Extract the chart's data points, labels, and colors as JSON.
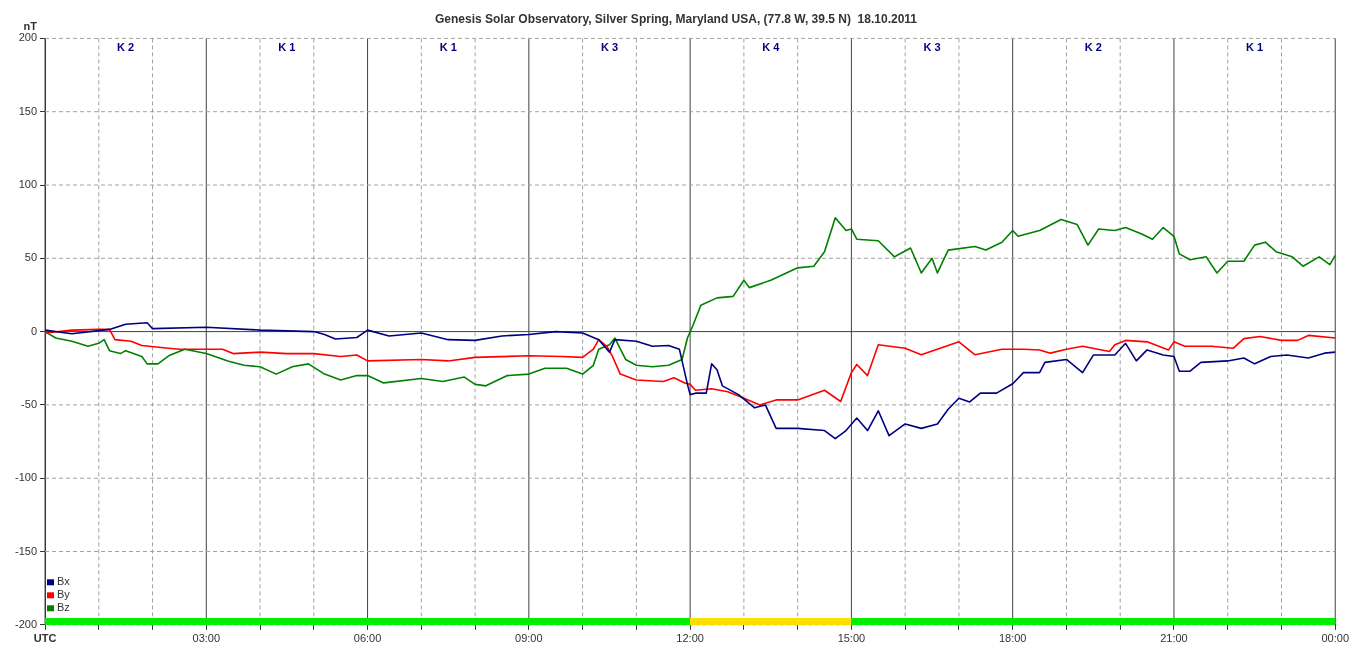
{
  "chart_data": {
    "type": "line",
    "title": "Genesis Solar Observatory, Silver Spring, Maryland USA, (77.8 W, 39.5 N)  18.10.2011",
    "ylabel": "nT",
    "xlim": [
      0,
      24
    ],
    "xticks": [
      {
        "value": 0,
        "label": "UTC"
      },
      {
        "value": 1,
        "label": null
      },
      {
        "value": 2,
        "label": null
      },
      {
        "value": 3,
        "label": "03:00"
      },
      {
        "value": 4,
        "label": null
      },
      {
        "value": 5,
        "label": null
      },
      {
        "value": 6,
        "label": "06:00"
      },
      {
        "value": 7,
        "label": null
      },
      {
        "value": 8,
        "label": null
      },
      {
        "value": 9,
        "label": "09:00"
      },
      {
        "value": 10,
        "label": null
      },
      {
        "value": 11,
        "label": null
      },
      {
        "value": 12,
        "label": "12:00"
      },
      {
        "value": 13,
        "label": null
      },
      {
        "value": 14,
        "label": null
      },
      {
        "value": 15,
        "label": "15:00"
      },
      {
        "value": 16,
        "label": null
      },
      {
        "value": 17,
        "label": null
      },
      {
        "value": 18,
        "label": "18:00"
      },
      {
        "value": 19,
        "label": null
      },
      {
        "value": 20,
        "label": null
      },
      {
        "value": 21,
        "label": "21:00"
      },
      {
        "value": 22,
        "label": null
      },
      {
        "value": 23,
        "label": null
      },
      {
        "value": 24,
        "label": "00:00"
      }
    ],
    "ylim": [
      -200,
      200
    ],
    "yticks": [
      -200,
      -150,
      -100,
      -50,
      0,
      50,
      100,
      150,
      200
    ],
    "grid": true,
    "legend": "bottom left",
    "marker": "none",
    "annotations": [
      "K 2",
      "K 1",
      "K 1",
      "K 3",
      "K 4",
      "K 3",
      "K 2",
      "K 1"
    ],
    "series": [
      {
        "name": "Bx",
        "color": "#000080",
        "x": [
          0,
          0.5,
          1.2,
          1.5,
          1.9,
          2,
          3,
          4,
          5,
          5.2,
          5.4,
          5.8,
          6,
          6.4,
          7,
          7.5,
          8,
          8.5,
          9,
          9.5,
          10,
          10.3,
          10.5,
          10.6,
          11,
          11.3,
          11.6,
          11.8,
          11.95,
          12,
          12.1,
          12.3,
          12.4,
          12.5,
          12.6,
          12.9,
          13.2,
          13.4,
          13.6,
          14,
          14.5,
          14.7,
          14.9,
          15.1,
          15.3,
          15.5,
          15.7,
          16,
          16.3,
          16.6,
          16.8,
          17,
          17.2,
          17.4,
          17.7,
          18,
          18.2,
          18.5,
          18.6,
          19,
          19.3,
          19.5,
          19.9,
          20.1,
          20.3,
          20.5,
          20.8,
          21,
          21.1,
          21.3,
          21.5,
          22,
          22.3,
          22.5,
          22.8,
          23.1,
          23.5,
          23.8,
          24
        ],
        "values": [
          1,
          -1.5,
          1.5,
          5,
          6,
          2,
          3,
          1,
          0,
          -2,
          -5,
          -4,
          1,
          -3,
          -1,
          -5.5,
          -6,
          -3,
          -2,
          0,
          -1,
          -5.5,
          -14,
          -5.5,
          -6.6,
          -10,
          -9.5,
          -12,
          -36,
          -43,
          -42,
          -42,
          -22,
          -26,
          -37,
          -43,
          -52,
          -50,
          -66,
          -66,
          -67.5,
          -73,
          -67.5,
          -59,
          -67.5,
          -54,
          -71,
          -63,
          -66,
          -63,
          -53,
          -45.5,
          -48,
          -42,
          -42,
          -35.6,
          -28,
          -28,
          -21,
          -19,
          -28,
          -16,
          -16,
          -8,
          -20,
          -12.5,
          -16,
          -17,
          -27,
          -27,
          -21,
          -20,
          -18,
          -22,
          -17,
          -16,
          -18,
          -14.7,
          -14
        ]
      },
      {
        "name": "By",
        "color": "#ff0000",
        "x": [
          0,
          0.5,
          1,
          1.2,
          1.3,
          1.6,
          1.8,
          2.2,
          2.5,
          3,
          3.3,
          3.5,
          4,
          4.5,
          5,
          5.5,
          5.8,
          6,
          7,
          7.5,
          8,
          9,
          9.6,
          10,
          10.2,
          10.3,
          10.45,
          10.55,
          10.7,
          11,
          11.5,
          11.7,
          11.9,
          12,
          12.1,
          12.4,
          12.7,
          12.9,
          13.3,
          13.6,
          14,
          14.5,
          14.8,
          15,
          15.1,
          15.3,
          15.5,
          16,
          16.3,
          17,
          17.3,
          17.8,
          18.2,
          18.5,
          18.7,
          19,
          19.3,
          19.8,
          19.9,
          20.1,
          20.5,
          20.9,
          21,
          21.2,
          21.7,
          22.1,
          22.3,
          22.6,
          23,
          23.3,
          23.5,
          24
        ],
        "values": [
          -1,
          1,
          1.5,
          1.5,
          -5.5,
          -6.6,
          -9.5,
          -11,
          -12,
          -12,
          -12,
          -15,
          -14,
          -15,
          -15,
          -17,
          -16,
          -20,
          -19,
          -20,
          -17.6,
          -16.5,
          -17,
          -17.6,
          -12,
          -5.5,
          -10,
          -16.5,
          -29,
          -33,
          -34,
          -31.5,
          -35,
          -36,
          -40,
          -39,
          -41,
          -44,
          -50,
          -46.6,
          -46.6,
          -40,
          -47.7,
          -28,
          -22.4,
          -30,
          -9,
          -11.4,
          -15.8,
          -7,
          -15.8,
          -12,
          -12,
          -12.5,
          -14.7,
          -12,
          -10,
          -13.6,
          -9,
          -6,
          -7,
          -12.5,
          -7,
          -10,
          -10,
          -11.4,
          -4.8,
          -3.3,
          -6,
          -6,
          -2.6,
          -4.4
        ]
      },
      {
        "name": "Bz",
        "color": "#008000",
        "x": [
          0,
          0.2,
          0.5,
          0.8,
          1,
          1.1,
          1.2,
          1.4,
          1.5,
          1.8,
          1.9,
          2.1,
          2.3,
          2.6,
          3,
          3.4,
          3.7,
          4,
          4.3,
          4.6,
          4.9,
          5.2,
          5.5,
          5.8,
          6,
          6.3,
          7,
          7.4,
          7.8,
          8,
          8.2,
          8.6,
          9,
          9.3,
          9.7,
          10,
          10.2,
          10.3,
          10.5,
          10.6,
          10.8,
          11,
          11.3,
          11.6,
          11.85,
          11.95,
          12.05,
          12.2,
          12.5,
          12.8,
          13,
          13.1,
          13.5,
          14,
          14.3,
          14.5,
          14.7,
          14.9,
          15,
          15.1,
          15.5,
          15.8,
          16.1,
          16.3,
          16.5,
          16.6,
          16.8,
          17.3,
          17.5,
          17.8,
          18,
          18.1,
          18.5,
          18.9,
          19.2,
          19.4,
          19.6,
          19.9,
          20.1,
          20.4,
          20.6,
          20.8,
          21,
          21.1,
          21.3,
          21.6,
          21.8,
          22,
          22.3,
          22.5,
          22.7,
          22.9,
          23.2,
          23.4,
          23.7,
          23.9,
          24
        ],
        "values": [
          0,
          -4.4,
          -6.6,
          -10,
          -8,
          -5.5,
          -13,
          -15,
          -13,
          -17,
          -22,
          -22,
          -16.5,
          -12,
          -15,
          -20,
          -23,
          -24,
          -29,
          -24,
          -22,
          -29,
          -33,
          -30,
          -30,
          -35,
          -32,
          -34,
          -31,
          -36,
          -37,
          -30,
          -29,
          -25,
          -25,
          -29,
          -23,
          -12,
          -9,
          -4.4,
          -19,
          -23,
          -24,
          -23,
          -19,
          -4.4,
          4,
          18,
          23,
          24,
          35,
          30,
          35,
          43.5,
          44.6,
          54.5,
          77.6,
          69,
          70,
          63,
          62,
          51,
          57,
          40,
          50,
          40,
          55.6,
          58,
          55.6,
          61,
          69,
          65,
          69,
          76.5,
          73,
          59,
          70,
          69,
          71,
          66.6,
          63,
          71,
          65,
          53,
          49,
          51,
          40,
          48,
          48,
          59,
          61,
          54.5,
          51,
          44.6,
          51,
          45.7,
          52
        ]
      }
    ]
  }
}
